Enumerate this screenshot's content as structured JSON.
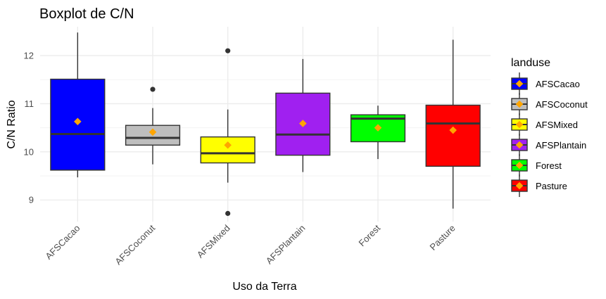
{
  "chart_data": {
    "type": "boxplot",
    "title": "Boxplot de C/N",
    "xlabel": "Uso da Terra",
    "ylabel": "C/N Ratio",
    "ylim": [
      8.55,
      12.6
    ],
    "yticks": [
      9,
      10,
      11,
      12
    ],
    "grid": true,
    "legend": {
      "title": "landuse",
      "position": "right"
    },
    "mean_marker_color": "#FFA500",
    "categories": [
      "AFSCacao",
      "AFSCoconut",
      "AFSMixed",
      "AFSPlantain",
      "Forest",
      "Pasture"
    ],
    "series": [
      {
        "name": "AFSCacao",
        "fill": "#0000FF",
        "whisker_low": 9.47,
        "q1": 9.62,
        "median": 10.37,
        "q3": 11.51,
        "whisker_high": 12.48,
        "mean": 10.63,
        "outliers": []
      },
      {
        "name": "AFSCoconut",
        "fill": "#BEBEBE",
        "whisker_low": 9.74,
        "q1": 10.14,
        "median": 10.29,
        "q3": 10.55,
        "whisker_high": 10.91,
        "mean": 10.41,
        "outliers": [
          11.3
        ]
      },
      {
        "name": "AFSMixed",
        "fill": "#FFFF00",
        "whisker_low": 9.36,
        "q1": 9.77,
        "median": 9.97,
        "q3": 10.31,
        "whisker_high": 10.88,
        "mean": 10.14,
        "outliers": [
          12.1,
          8.72
        ]
      },
      {
        "name": "AFSPlantain",
        "fill": "#A020F0",
        "whisker_low": 9.58,
        "q1": 9.93,
        "median": 10.36,
        "q3": 11.22,
        "whisker_high": 11.93,
        "mean": 10.59,
        "outliers": []
      },
      {
        "name": "Forest",
        "fill": "#00FF00",
        "whisker_low": 9.85,
        "q1": 10.21,
        "median": 10.69,
        "q3": 10.77,
        "whisker_high": 10.96,
        "mean": 10.5,
        "outliers": []
      },
      {
        "name": "Pasture",
        "fill": "#FF0000",
        "whisker_low": 8.82,
        "q1": 9.7,
        "median": 10.59,
        "q3": 10.97,
        "whisker_high": 12.33,
        "mean": 10.45,
        "outliers": []
      }
    ]
  }
}
